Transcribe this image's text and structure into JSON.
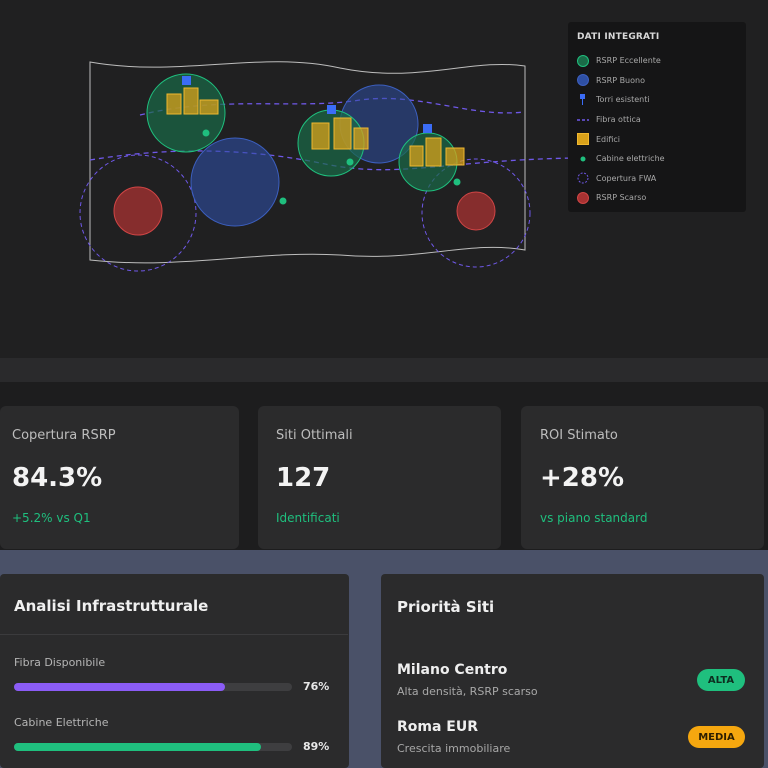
{
  "legend": {
    "title": "DATI INTEGRATI",
    "items": [
      {
        "label": "RSRP Eccellente",
        "icon": "green-circle-icon",
        "color": "#1a9d5f"
      },
      {
        "label": "RSRP Buono",
        "icon": "blue-circle-icon",
        "color": "#2e4fa3"
      },
      {
        "label": "Torri esistenti",
        "icon": "tower-icon",
        "color": "#3b6cf6"
      },
      {
        "label": "Fibra ottica",
        "icon": "fiber-line-icon",
        "color": "#6f58e8"
      },
      {
        "label": "Edifici",
        "icon": "building-icon",
        "color": "#d9a11a"
      },
      {
        "label": "Cabine elettriche",
        "icon": "cabin-dot-icon",
        "color": "#1fbf7e"
      },
      {
        "label": "Copertura FWA",
        "icon": "fwa-dashed-circle-icon",
        "color": "#6f58e8"
      },
      {
        "label": "RSRP Scarso",
        "icon": "red-circle-icon",
        "color": "#c03535"
      }
    ]
  },
  "kpis": [
    {
      "label": "Copertura RSRP",
      "value": "84.3%",
      "sub": "+5.2% vs Q1"
    },
    {
      "label": "Siti Ottimali",
      "value": "127",
      "sub": "Identificati"
    },
    {
      "label": "ROI Stimato",
      "value": "+28%",
      "sub": "vs piano standard"
    }
  ],
  "infra": {
    "title": "Analisi Infrastrutturale",
    "bars": [
      {
        "label": "Fibra Disponibile",
        "pct_text": "76%",
        "value": 76,
        "color": "#8b5cf6"
      },
      {
        "label": "Cabine Elettriche",
        "pct_text": "89%",
        "value": 89,
        "color": "#1fbf7e"
      }
    ]
  },
  "sites": {
    "title": "Priorità Siti",
    "items": [
      {
        "name": "Milano Centro",
        "desc": "Alta densità, RSRP scarso",
        "badge": "ALTA",
        "badge_color": "#1fbf7e"
      },
      {
        "name": "Roma EUR",
        "desc": "Crescita immobiliare",
        "badge": "MEDIA",
        "badge_color": "#f5a70f"
      }
    ]
  }
}
